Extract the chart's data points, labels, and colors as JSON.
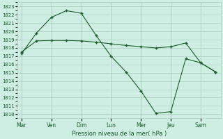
{
  "xlabel": "Pression niveau de la mer( hPa )",
  "bg_color": "#ceeee4",
  "grid_color": "#aacebe",
  "line_color": "#1a5c2a",
  "ylim": [
    1009.5,
    1023.5
  ],
  "yticks": [
    1010,
    1011,
    1012,
    1013,
    1014,
    1015,
    1016,
    1017,
    1018,
    1019,
    1020,
    1021,
    1022,
    1023
  ],
  "xtick_labels": [
    "Mar",
    "Ven",
    "Dim",
    "Lun",
    "Mer",
    "Jeu",
    "Sam"
  ],
  "xtick_positions": [
    0,
    1.5,
    3,
    4.5,
    6,
    7.5,
    9
  ],
  "xlim": [
    -0.2,
    10.0
  ],
  "line1_x": [
    0,
    0.75,
    1.5,
    2.25,
    3.0,
    3.75,
    4.5,
    5.25,
    6.0,
    6.75,
    7.5,
    8.25,
    9.0,
    9.75
  ],
  "line1_y": [
    1017.3,
    1019.8,
    1021.7,
    1022.5,
    1022.2,
    1019.5,
    1017.0,
    1015.1,
    1012.8,
    1010.1,
    1010.3,
    1016.7,
    1016.2,
    1015.1
  ],
  "line2_x": [
    0,
    0.75,
    1.5,
    2.25,
    3.0,
    3.75,
    4.5,
    5.25,
    6.0,
    6.75,
    7.5,
    8.25,
    9.0,
    9.75
  ],
  "line2_y": [
    1017.5,
    1018.85,
    1018.9,
    1018.9,
    1018.85,
    1018.7,
    1018.5,
    1018.3,
    1018.15,
    1018.0,
    1018.15,
    1018.6,
    1016.2,
    1015.1
  ]
}
